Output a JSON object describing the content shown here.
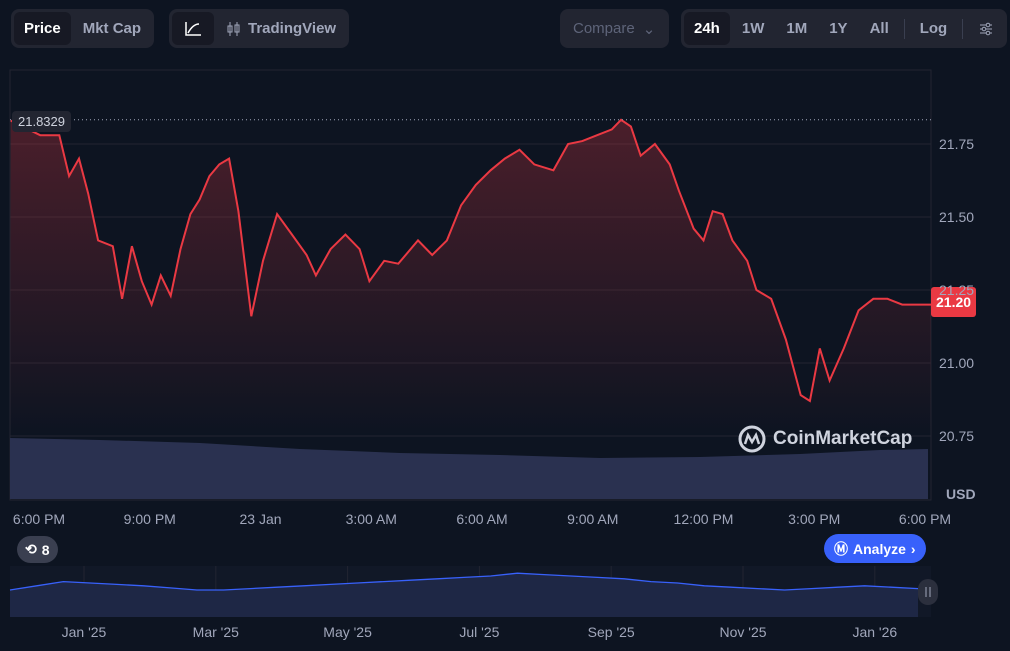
{
  "toolbar": {
    "price": "Price",
    "mkt_cap": "Mkt Cap",
    "line_icon": "line-chart-icon",
    "tradingview": "TradingView",
    "compare": "Compare",
    "ranges": [
      "24h",
      "1W",
      "1M",
      "1Y",
      "All"
    ],
    "log": "Log",
    "active_range": "24h",
    "active_type": "Price"
  },
  "colors": {
    "line": "#ea3943",
    "accent": "#3861fb",
    "bg": "#0d1421",
    "volume": "#2a3150",
    "overview_line": "#3861fb"
  },
  "chart_data": {
    "type": "line",
    "currency": "USD",
    "ylim": [
      20.7,
      21.95
    ],
    "y_ticks": [
      "21.75",
      "21.50",
      "21.25",
      "21.00",
      "20.75"
    ],
    "y_tick_values": [
      21.75,
      21.5,
      21.25,
      21.0,
      20.75
    ],
    "x_ticks": [
      "6:00 PM",
      "9:00 PM",
      "23 Jan",
      "3:00 AM",
      "6:00 AM",
      "9:00 AM",
      "12:00 PM",
      "3:00 PM",
      "6:00 PM"
    ],
    "x_tick_times": [
      "22 18:00",
      "22 21:00",
      "23 00:00",
      "23 03:00",
      "23 06:00",
      "23 09:00",
      "23 12:00",
      "23 15:00",
      "23 18:00"
    ],
    "high_label": "21.8329",
    "current_label": "21.20",
    "points": [
      [
        "22 17:14",
        21.83
      ],
      [
        "22 18:02",
        21.78
      ],
      [
        "22 18:33",
        21.78
      ],
      [
        "22 18:49",
        21.64
      ],
      [
        "22 19:05",
        21.7
      ],
      [
        "22 19:20",
        21.58
      ],
      [
        "22 19:36",
        21.42
      ],
      [
        "22 20:00",
        21.4
      ],
      [
        "22 20:15",
        21.22
      ],
      [
        "22 20:31",
        21.4
      ],
      [
        "22 20:47",
        21.28
      ],
      [
        "22 21:03",
        21.2
      ],
      [
        "22 21:18",
        21.3
      ],
      [
        "22 21:34",
        21.23
      ],
      [
        "22 21:50",
        21.39
      ],
      [
        "22 22:06",
        21.51
      ],
      [
        "22 22:21",
        21.56
      ],
      [
        "22 22:37",
        21.64
      ],
      [
        "22 22:53",
        21.68
      ],
      [
        "22 23:09",
        21.7
      ],
      [
        "22 23:24",
        21.52
      ],
      [
        "22 23:45",
        21.16
      ],
      [
        "23 00:04",
        21.35
      ],
      [
        "23 00:27",
        21.51
      ],
      [
        "23 00:51",
        21.44
      ],
      [
        "23 01:15",
        21.37
      ],
      [
        "23 01:30",
        21.3
      ],
      [
        "23 01:54",
        21.39
      ],
      [
        "23 02:18",
        21.44
      ],
      [
        "23 02:41",
        21.39
      ],
      [
        "23 02:57",
        21.28
      ],
      [
        "23 03:21",
        21.35
      ],
      [
        "23 03:44",
        21.34
      ],
      [
        "23 04:16",
        21.42
      ],
      [
        "23 04:39",
        21.37
      ],
      [
        "23 05:03",
        21.42
      ],
      [
        "23 05:26",
        21.54
      ],
      [
        "23 05:50",
        21.61
      ],
      [
        "23 06:14",
        21.66
      ],
      [
        "23 06:37",
        21.7
      ],
      [
        "23 07:01",
        21.73
      ],
      [
        "23 07:25",
        21.68
      ],
      [
        "23 07:56",
        21.66
      ],
      [
        "23 08:20",
        21.75
      ],
      [
        "23 08:43",
        21.76
      ],
      [
        "23 09:07",
        21.78
      ],
      [
        "23 09:31",
        21.8
      ],
      [
        "23 09:46",
        21.833
      ],
      [
        "23 10:02",
        21.81
      ],
      [
        "23 10:18",
        21.71
      ],
      [
        "23 10:41",
        21.75
      ],
      [
        "23 11:05",
        21.68
      ],
      [
        "23 11:20",
        21.59
      ],
      [
        "23 11:44",
        21.46
      ],
      [
        "23 12:00",
        21.42
      ],
      [
        "23 12:15",
        21.52
      ],
      [
        "23 12:31",
        21.51
      ],
      [
        "23 12:47",
        21.42
      ],
      [
        "23 13:11",
        21.35
      ],
      [
        "23 13:26",
        21.25
      ],
      [
        "23 13:50",
        21.22
      ],
      [
        "23 14:14",
        21.08
      ],
      [
        "23 14:38",
        20.89
      ],
      [
        "23 14:53",
        20.87
      ],
      [
        "23 15:09",
        21.05
      ],
      [
        "23 15:25",
        20.94
      ],
      [
        "23 15:48",
        21.05
      ],
      [
        "23 16:12",
        21.18
      ],
      [
        "23 16:36",
        21.22
      ],
      [
        "23 16:59",
        21.22
      ],
      [
        "23 17:23",
        21.2
      ]
    ]
  },
  "overview": {
    "x_ticks": [
      "Jan '25",
      "Mar '25",
      "May '25",
      "Jul '25",
      "Sep '25",
      "Nov '25",
      "Jan '26"
    ],
    "values": [
      30,
      36,
      42,
      40,
      38,
      36,
      33,
      30,
      30,
      32,
      34,
      36,
      38,
      40,
      42,
      44,
      46,
      48,
      50,
      54,
      52,
      50,
      48,
      46,
      42,
      40,
      36,
      34,
      32,
      30,
      32,
      34,
      36,
      34,
      32
    ]
  },
  "watermark": "CoinMarketCap",
  "history_count": "8",
  "analyze": "Analyze"
}
